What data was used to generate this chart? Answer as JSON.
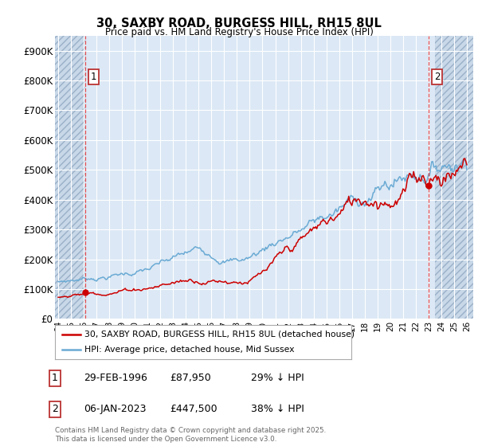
{
  "title": "30, SAXBY ROAD, BURGESS HILL, RH15 8UL",
  "subtitle": "Price paid vs. HM Land Registry's House Price Index (HPI)",
  "ylim": [
    0,
    950000
  ],
  "yticks": [
    0,
    100000,
    200000,
    300000,
    400000,
    500000,
    600000,
    700000,
    800000,
    900000
  ],
  "ytick_labels": [
    "£0",
    "£100K",
    "£200K",
    "£300K",
    "£400K",
    "£500K",
    "£600K",
    "£700K",
    "£800K",
    "£900K"
  ],
  "xlim_start": 1993.75,
  "xlim_end": 2026.5,
  "plot_bg_color": "#dce8f5",
  "hatch_bg_color": "#c8d8e8",
  "grid_color": "#b8cde0",
  "red_color": "#cc0000",
  "blue_color": "#6aaad4",
  "point1_x": 1996.15,
  "point1_y": 87950,
  "point2_x": 2023.02,
  "point2_y": 447500,
  "hatch_left_end": 1996.15,
  "hatch_right_start": 2023.5,
  "legend_line1": "30, SAXBY ROAD, BURGESS HILL, RH15 8UL (detached house)",
  "legend_line2": "HPI: Average price, detached house, Mid Sussex",
  "annot1_date": "29-FEB-1996",
  "annot1_price": "£87,950",
  "annot1_hpi": "29% ↓ HPI",
  "annot2_date": "06-JAN-2023",
  "annot2_price": "£447,500",
  "annot2_hpi": "38% ↓ HPI",
  "copyright": "Contains HM Land Registry data © Crown copyright and database right 2025.\nThis data is licensed under the Open Government Licence v3.0."
}
